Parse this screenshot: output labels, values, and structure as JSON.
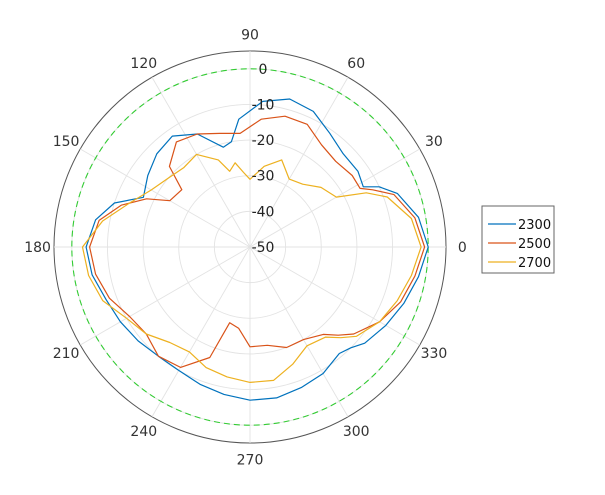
{
  "chart_data": {
    "type": "polar-line",
    "title": "",
    "angle_ticks": [
      "0",
      "30",
      "60",
      "90",
      "120",
      "150",
      "180",
      "210",
      "240",
      "270",
      "300",
      "330"
    ],
    "r_ticks": [
      "0",
      "-10",
      "-20",
      "-30",
      "-40",
      "-50"
    ],
    "rlim": [
      -50,
      5
    ],
    "grid": true,
    "legend_position": "right",
    "reference_circle": {
      "value": 0,
      "color": "#33cc33",
      "style": "dashed"
    },
    "series": [
      {
        "name": "2300",
        "color": "#0072bd",
        "points": [
          [
            0,
            0
          ],
          [
            10,
            -2
          ],
          [
            20,
            -6
          ],
          [
            25,
            -10
          ],
          [
            28,
            -14
          ],
          [
            35,
            -13
          ],
          [
            45,
            -13
          ],
          [
            55,
            -11
          ],
          [
            65,
            -8
          ],
          [
            75,
            -7
          ],
          [
            85,
            -9
          ],
          [
            95,
            -14
          ],
          [
            100,
            -20
          ],
          [
            105,
            -21
          ],
          [
            115,
            -15
          ],
          [
            125,
            -12
          ],
          [
            135,
            -13
          ],
          [
            145,
            -15
          ],
          [
            155,
            -17
          ],
          [
            162,
            -10
          ],
          [
            170,
            -6
          ],
          [
            180,
            -4
          ],
          [
            190,
            -5
          ],
          [
            200,
            -7
          ],
          [
            210,
            -8
          ],
          [
            220,
            -9
          ],
          [
            230,
            -10
          ],
          [
            240,
            -10
          ],
          [
            250,
            -9
          ],
          [
            260,
            -8
          ],
          [
            270,
            -7
          ],
          [
            280,
            -7
          ],
          [
            290,
            -8
          ],
          [
            300,
            -9
          ],
          [
            310,
            -11
          ],
          [
            315,
            -10
          ],
          [
            320,
            -8
          ],
          [
            330,
            -6
          ],
          [
            340,
            -4
          ],
          [
            350,
            -2
          ],
          [
            360,
            0
          ]
        ]
      },
      {
        "name": "2500",
        "color": "#d95319",
        "points": [
          [
            0,
            -1
          ],
          [
            10,
            -3
          ],
          [
            20,
            -7
          ],
          [
            25,
            -12
          ],
          [
            28,
            -15
          ],
          [
            35,
            -15
          ],
          [
            45,
            -16
          ],
          [
            55,
            -15
          ],
          [
            65,
            -12
          ],
          [
            75,
            -12
          ],
          [
            85,
            -14
          ],
          [
            95,
            -18
          ],
          [
            105,
            -17
          ],
          [
            115,
            -15
          ],
          [
            125,
            -14
          ],
          [
            135,
            -18
          ],
          [
            140,
            -25
          ],
          [
            150,
            -24
          ],
          [
            155,
            -18
          ],
          [
            162,
            -12
          ],
          [
            170,
            -7
          ],
          [
            180,
            -5
          ],
          [
            190,
            -6
          ],
          [
            200,
            -8
          ],
          [
            210,
            -11
          ],
          [
            220,
            -12
          ],
          [
            230,
            -10
          ],
          [
            240,
            -11
          ],
          [
            250,
            -17
          ],
          [
            255,
            -28
          ],
          [
            262,
            -27
          ],
          [
            270,
            -22
          ],
          [
            280,
            -22
          ],
          [
            290,
            -20
          ],
          [
            300,
            -20
          ],
          [
            310,
            -18
          ],
          [
            315,
            -15
          ],
          [
            320,
            -12
          ],
          [
            330,
            -8
          ],
          [
            340,
            -5
          ],
          [
            350,
            -3
          ],
          [
            360,
            -1
          ]
        ]
      },
      {
        "name": "2700",
        "color": "#edb120",
        "points": [
          [
            0,
            -2
          ],
          [
            10,
            -4
          ],
          [
            20,
            -9
          ],
          [
            25,
            -14
          ],
          [
            30,
            -22
          ],
          [
            40,
            -24
          ],
          [
            50,
            -27
          ],
          [
            60,
            -28
          ],
          [
            70,
            -24
          ],
          [
            80,
            -27
          ],
          [
            90,
            -31
          ],
          [
            95,
            -29
          ],
          [
            100,
            -26
          ],
          [
            105,
            -28
          ],
          [
            110,
            -24
          ],
          [
            120,
            -20
          ],
          [
            130,
            -21
          ],
          [
            140,
            -20
          ],
          [
            150,
            -18
          ],
          [
            160,
            -14
          ],
          [
            170,
            -8
          ],
          [
            180,
            -3
          ],
          [
            190,
            -4
          ],
          [
            200,
            -6
          ],
          [
            210,
            -10
          ],
          [
            220,
            -12
          ],
          [
            230,
            -15
          ],
          [
            240,
            -16
          ],
          [
            250,
            -14
          ],
          [
            260,
            -13
          ],
          [
            270,
            -12
          ],
          [
            280,
            -12
          ],
          [
            290,
            -15
          ],
          [
            300,
            -18
          ],
          [
            310,
            -17
          ],
          [
            315,
            -14
          ],
          [
            320,
            -11
          ],
          [
            330,
            -8
          ],
          [
            340,
            -6
          ],
          [
            350,
            -4
          ],
          [
            360,
            -2
          ]
        ]
      }
    ]
  }
}
